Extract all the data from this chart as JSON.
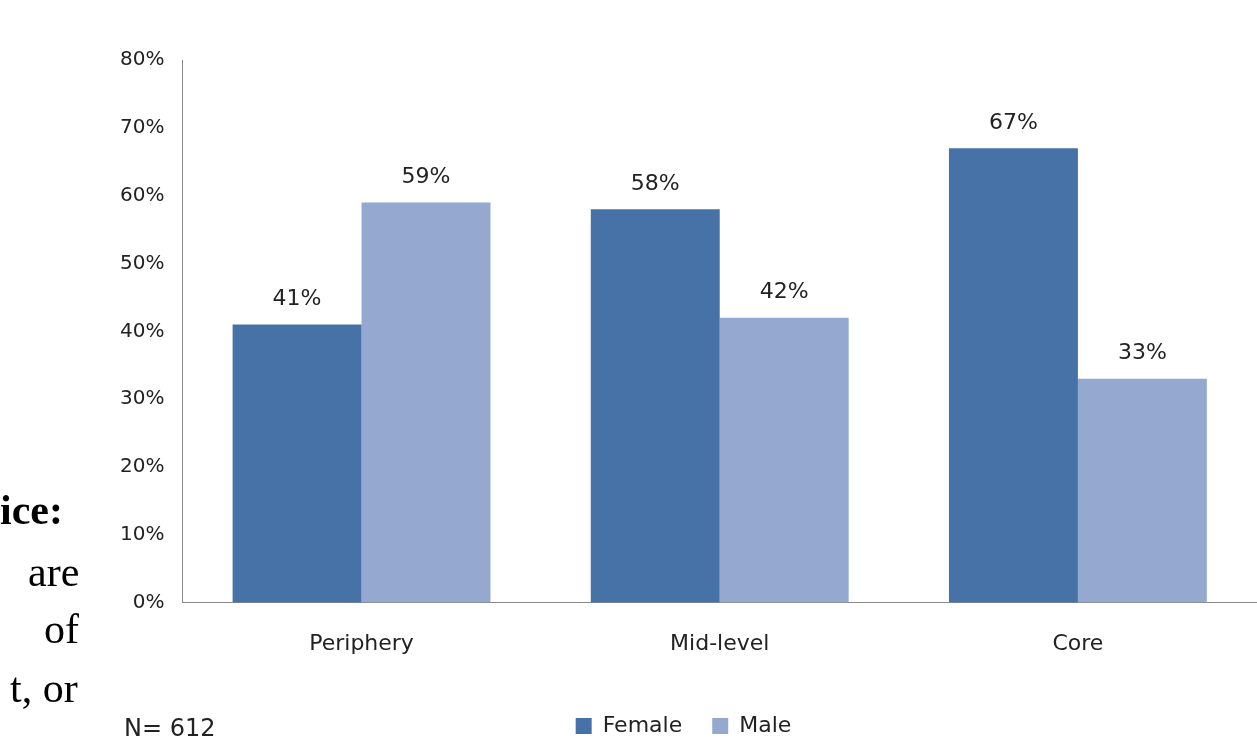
{
  "chart_data": {
    "type": "bar",
    "categories": [
      "Periphery",
      "Mid-level",
      "Core"
    ],
    "series": [
      {
        "name": "Female",
        "color": "#4672a7",
        "values": [
          41,
          58,
          67
        ]
      },
      {
        "name": "Male",
        "color": "#95a9d0",
        "values": [
          59,
          42,
          33
        ]
      }
    ],
    "ylim": [
      0,
      80
    ],
    "yticks": [
      {
        "value": 0,
        "label": "0%"
      },
      {
        "value": 10,
        "label": "10%"
      },
      {
        "value": 20,
        "label": "20%"
      },
      {
        "value": 30,
        "label": "30%"
      },
      {
        "value": 40,
        "label": "40%"
      },
      {
        "value": 50,
        "label": "50%"
      },
      {
        "value": 60,
        "label": "60%"
      },
      {
        "value": 70,
        "label": "70%"
      },
      {
        "value": 80,
        "label": "80%"
      }
    ],
    "value_labels": [
      [
        "41%",
        "58%",
        "67%"
      ],
      [
        "59%",
        "42%",
        "33%"
      ]
    ],
    "grid": false,
    "legend": "bottom",
    "annotations": [
      "N= 612",
      "ice:",
      "are",
      "of",
      "t, or"
    ]
  }
}
